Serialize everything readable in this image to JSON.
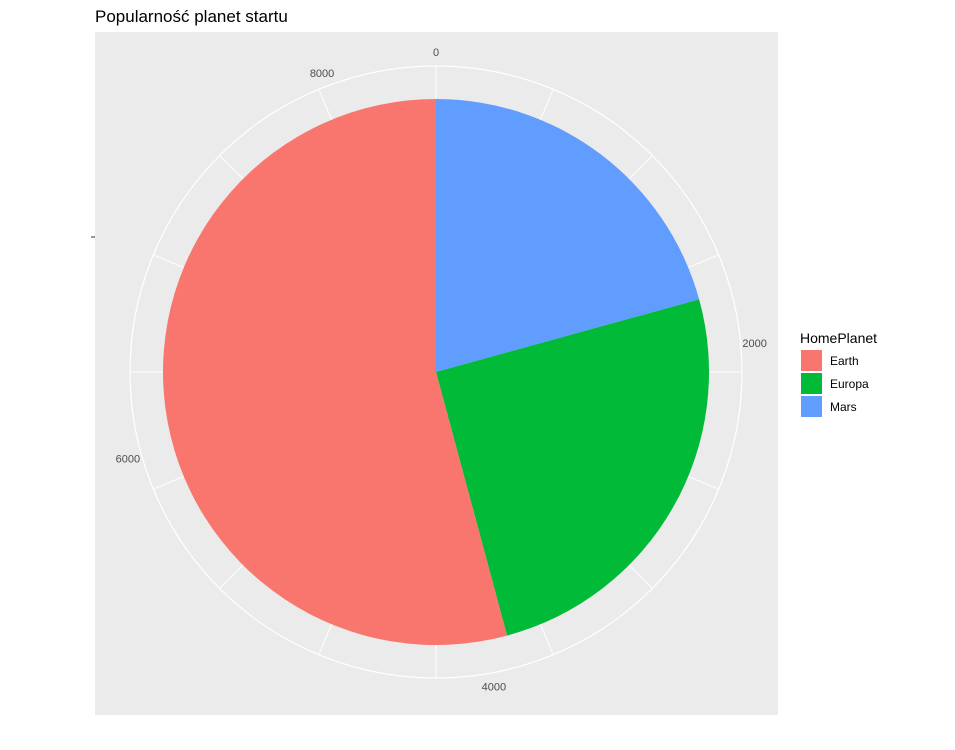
{
  "chart_data": {
    "type": "pie",
    "title": "Popularność planet startu",
    "categories": [
      "Earth",
      "Europa",
      "Mars"
    ],
    "values": [
      4602,
      2131,
      1759
    ],
    "colors": [
      "#F8766D",
      "#00BA38",
      "#619CFF"
    ],
    "axis_ticks": [
      0,
      2000,
      4000,
      6000,
      8000
    ],
    "axis_range": [
      0,
      8492
    ],
    "grid": true,
    "legend": {
      "title": "HomePlanet",
      "position": "right",
      "entries": [
        "Earth",
        "Europa",
        "Mars"
      ]
    }
  }
}
